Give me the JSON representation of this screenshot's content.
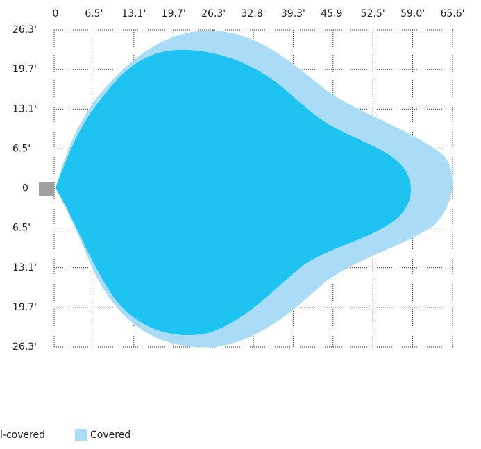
{
  "x_axis": {
    "labels": [
      "0",
      "6.5'",
      "13.1'",
      "19.7'",
      "26.3'",
      "32.8'",
      "39.3'",
      "45.9'",
      "52.5'",
      "59.0'",
      "65.6'"
    ]
  },
  "y_axis": {
    "labels": [
      "26.3'",
      "19.7'",
      "13.1'",
      "6.5'",
      "0",
      "6.5'",
      "13.1'",
      "19.7'",
      "26.3'"
    ]
  },
  "legend": {
    "items": [
      "l-covered",
      "Covered"
    ]
  }
}
